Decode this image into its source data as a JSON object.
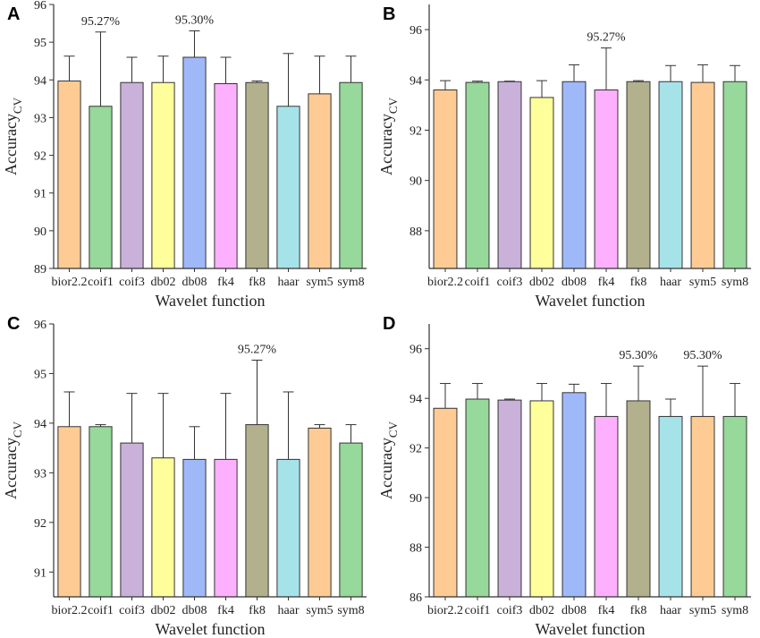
{
  "figure": {
    "colors": [
      "#fecb94",
      "#97d89b",
      "#c9b1da",
      "#feff9b",
      "#9fb9f8",
      "#fdb0fd",
      "#b3b18d",
      "#a6e3e8",
      "#fecb94",
      "#97d89b"
    ]
  },
  "chart_data": [
    {
      "panel": "A",
      "type": "bar",
      "categories": [
        "bior2.2",
        "coif1",
        "coif3",
        "db02",
        "db08",
        "fk4",
        "fk8",
        "haar",
        "sym5",
        "sym8"
      ],
      "values": [
        93.97,
        93.3,
        93.93,
        93.93,
        94.6,
        93.9,
        93.93,
        93.3,
        93.63,
        93.93
      ],
      "error_upper": [
        94.63,
        95.27,
        94.6,
        94.63,
        95.3,
        94.6,
        93.97,
        94.7,
        94.63,
        94.63
      ],
      "ylim": [
        89,
        96
      ],
      "yticks": [
        89,
        90,
        91,
        92,
        93,
        94,
        95,
        96
      ],
      "xlabel": "Wavelet function",
      "ylabel": "Accuracy",
      "ylabel_sub": "CV",
      "annotations": [
        {
          "category": "coif1",
          "text": "95.27%"
        },
        {
          "category": "db08",
          "text": "95.30%"
        }
      ]
    },
    {
      "panel": "B",
      "type": "bar",
      "categories": [
        "bior2.2",
        "coif1",
        "coif3",
        "db02",
        "db08",
        "fk4",
        "fk8",
        "haar",
        "sym5",
        "sym8"
      ],
      "values": [
        93.6,
        93.9,
        93.93,
        93.3,
        93.93,
        93.6,
        93.93,
        93.93,
        93.9,
        93.93
      ],
      "error_upper": [
        93.97,
        93.95,
        93.95,
        93.97,
        94.6,
        95.27,
        93.97,
        94.57,
        94.6,
        94.57
      ],
      "ylim": [
        86.5,
        97
      ],
      "yticks": [
        88,
        90,
        92,
        94,
        96
      ],
      "xlabel": "Wavelet function",
      "ylabel": "Accuracy",
      "ylabel_sub": "CV",
      "annotations": [
        {
          "category": "fk4",
          "text": "95.27%"
        }
      ]
    },
    {
      "panel": "C",
      "type": "bar",
      "categories": [
        "bior2.2",
        "coif1",
        "coif3",
        "db02",
        "db08",
        "fk4",
        "fk8",
        "haar",
        "sym5",
        "sym8"
      ],
      "values": [
        93.93,
        93.93,
        93.6,
        93.3,
        93.27,
        93.27,
        93.97,
        93.27,
        93.9,
        93.6
      ],
      "error_upper": [
        94.63,
        93.97,
        94.6,
        94.6,
        93.93,
        94.6,
        95.27,
        94.63,
        93.97,
        93.97
      ],
      "ylim": [
        90.5,
        96
      ],
      "yticks": [
        91,
        92,
        93,
        94,
        95,
        96
      ],
      "xlabel": "Wavelet function",
      "ylabel": "Accuracy",
      "ylabel_sub": "CV",
      "annotations": [
        {
          "category": "fk8",
          "text": "95.27%"
        }
      ]
    },
    {
      "panel": "D",
      "type": "bar",
      "categories": [
        "bior2.2",
        "coif1",
        "coif3",
        "db02",
        "db08",
        "fk4",
        "fk8",
        "haar",
        "sym5",
        "sym8"
      ],
      "values": [
        93.6,
        93.97,
        93.93,
        93.9,
        94.23,
        93.27,
        93.9,
        93.27,
        93.27,
        93.27
      ],
      "error_upper": [
        94.6,
        94.6,
        93.97,
        94.6,
        94.57,
        94.6,
        95.3,
        93.97,
        95.3,
        94.6
      ],
      "ylim": [
        86,
        97
      ],
      "yticks": [
        86,
        88,
        90,
        92,
        94,
        96
      ],
      "xlabel": "Wavelet function",
      "ylabel": "Accuracy",
      "ylabel_sub": "CV",
      "annotations": [
        {
          "category": "fk8",
          "text": "95.30%"
        },
        {
          "category": "sym5",
          "text": "95.30%"
        }
      ]
    }
  ]
}
